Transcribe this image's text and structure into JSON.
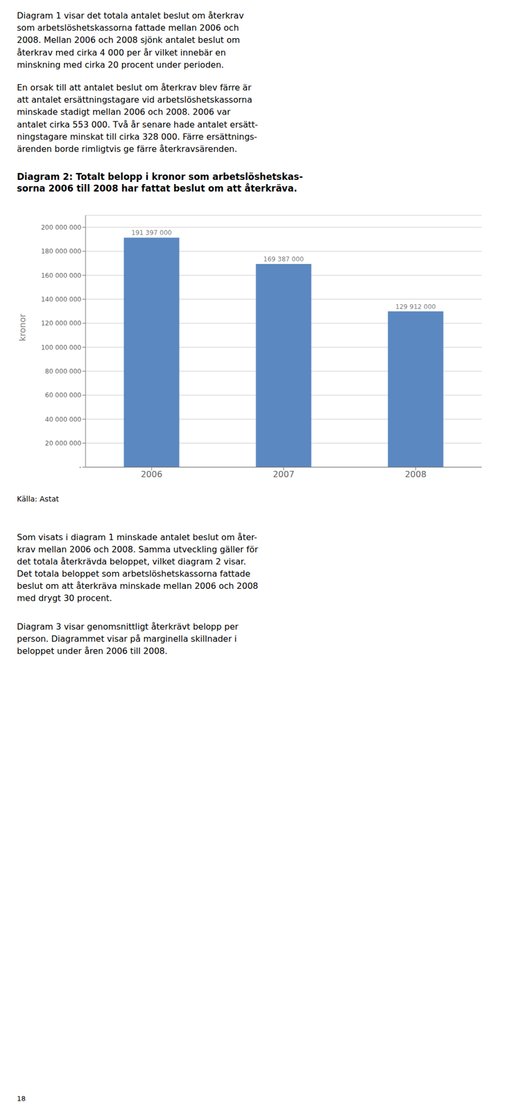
{
  "chart_data": {
    "type": "bar",
    "title": "Diagram 2: Totalt belopp i kronor som arbetslöshetskas-\nsorna 2006 till 2008 har fattat beslut om att återkräva.",
    "categories": [
      "2006",
      "2007",
      "2008"
    ],
    "values": [
      191397000,
      169387000,
      129912000
    ],
    "value_labels": [
      "191 397 000",
      "169 387 000",
      "129 912 000"
    ],
    "data_labels": true,
    "color": "#5B88C0",
    "ylabel": "kronor",
    "ylim": [
      0,
      210000000
    ],
    "yticks": [
      {
        "value": 200000000,
        "label": "200 000 000"
      },
      {
        "value": 180000000,
        "label": "180 000 000"
      },
      {
        "value": 160000000,
        "label": "160 000 000"
      },
      {
        "value": 140000000,
        "label": "140 000 000"
      },
      {
        "value": 120000000,
        "label": "120 000 000"
      },
      {
        "value": 100000000,
        "label": "100 000 000"
      },
      {
        "value": 80000000,
        "label": "80 000 000"
      },
      {
        "value": 60000000,
        "label": "60 000 000"
      },
      {
        "value": 40000000,
        "label": "40 000 000"
      },
      {
        "value": 20000000,
        "label": "20 000 000"
      },
      {
        "value": 0,
        "label": "-"
      }
    ],
    "grid": true,
    "annotations": [
      "Diagram 1 visar det totala antalet beslut om återkrav\nsom arbetslöshetskassorna fattade mellan 2006 och\n2008. Mellan 2006 och 2008 sjönk antalet beslut om\nåterkrav med cirka 4 000 per år vilket innebär en\nminskning med cirka 20 procent under perioden.",
      "En orsak till att antalet beslut om återkrav blev färre är\natt antalet ersättningstagare vid arbetslöshetskassorna\nminskade stadigt mellan 2006 och 2008. 2006 var\nantalet cirka 553 000. Två år senare hade antalet ersätt-\nningstagare minskat till cirka 328 000. Färre ersättnings-\närenden borde rimligtvis ge färre återkravsärenden.",
      "Källa: Astat",
      "Som visats i diagram 1 minskade antalet beslut om åter-\nkrav mellan 2006 och 2008. Samma utveckling gäller för\ndet totala återkrävda beloppet, vilket diagram 2 visar.\nDet totala beloppet som arbetslöshetskassorna fattade\nbeslut om att återkräva minskade mellan 2006 och 2008\nmed drygt 30 procent.",
      "Diagram 3 visar genomsnittligt återkrävt belopp per\nperson. Diagrammet visar på marginella skillnader i\nbeloppet under åren 2006 till 2008.",
      "18"
    ]
  }
}
